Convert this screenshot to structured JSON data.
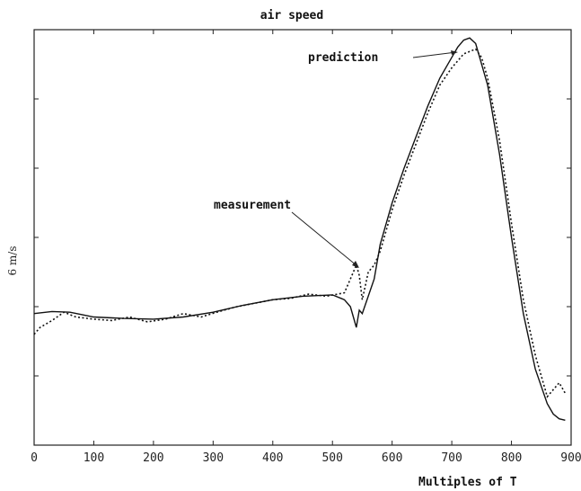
{
  "chart_data": {
    "type": "line",
    "title": "air speed",
    "xlabel": "Multiples of T",
    "ylabel": "6 m/s",
    "xlim": [
      0,
      900
    ],
    "x_ticks": [
      0,
      100,
      200,
      300,
      400,
      500,
      600,
      700,
      800,
      900
    ],
    "ylim": [
      0,
      6
    ],
    "grid": false,
    "annotations": [
      {
        "text": "prediction",
        "target_series": "prediction",
        "target_x": 725
      },
      {
        "text": "measurement",
        "target_series": "measurement",
        "target_x": 548
      }
    ],
    "series": [
      {
        "name": "prediction",
        "style": "solid",
        "x": [
          0,
          30,
          60,
          100,
          150,
          200,
          250,
          300,
          350,
          400,
          450,
          500,
          520,
          530,
          535,
          540,
          545,
          550,
          560,
          570,
          580,
          600,
          620,
          640,
          660,
          680,
          700,
          710,
          720,
          730,
          740,
          760,
          780,
          800,
          820,
          840,
          860,
          870,
          880,
          890
        ],
        "y": [
          1.9,
          1.93,
          1.92,
          1.85,
          1.83,
          1.82,
          1.85,
          1.92,
          2.02,
          2.1,
          2.15,
          2.17,
          2.1,
          2.0,
          1.85,
          1.7,
          1.95,
          1.9,
          2.15,
          2.4,
          2.9,
          3.5,
          4.0,
          4.45,
          4.9,
          5.3,
          5.6,
          5.75,
          5.85,
          5.88,
          5.8,
          5.2,
          4.2,
          3.0,
          1.9,
          1.1,
          0.6,
          0.45,
          0.38,
          0.36
        ]
      },
      {
        "name": "measurement",
        "style": "dotted",
        "x": [
          0,
          10,
          30,
          50,
          70,
          100,
          130,
          160,
          190,
          220,
          250,
          280,
          310,
          340,
          370,
          400,
          430,
          460,
          490,
          520,
          530,
          540,
          545,
          550,
          555,
          560,
          570,
          580,
          600,
          620,
          640,
          660,
          680,
          700,
          720,
          740,
          750,
          760,
          780,
          800,
          820,
          840,
          860,
          880,
          890
        ],
        "y": [
          1.6,
          1.7,
          1.8,
          1.92,
          1.85,
          1.82,
          1.8,
          1.85,
          1.78,
          1.82,
          1.9,
          1.85,
          1.93,
          2.0,
          2.05,
          2.1,
          2.12,
          2.18,
          2.15,
          2.2,
          2.4,
          2.6,
          2.45,
          2.1,
          2.3,
          2.5,
          2.6,
          2.8,
          3.4,
          3.9,
          4.35,
          4.8,
          5.2,
          5.45,
          5.65,
          5.72,
          5.6,
          5.3,
          4.4,
          3.2,
          2.1,
          1.3,
          0.7,
          0.9,
          0.75
        ]
      }
    ]
  }
}
